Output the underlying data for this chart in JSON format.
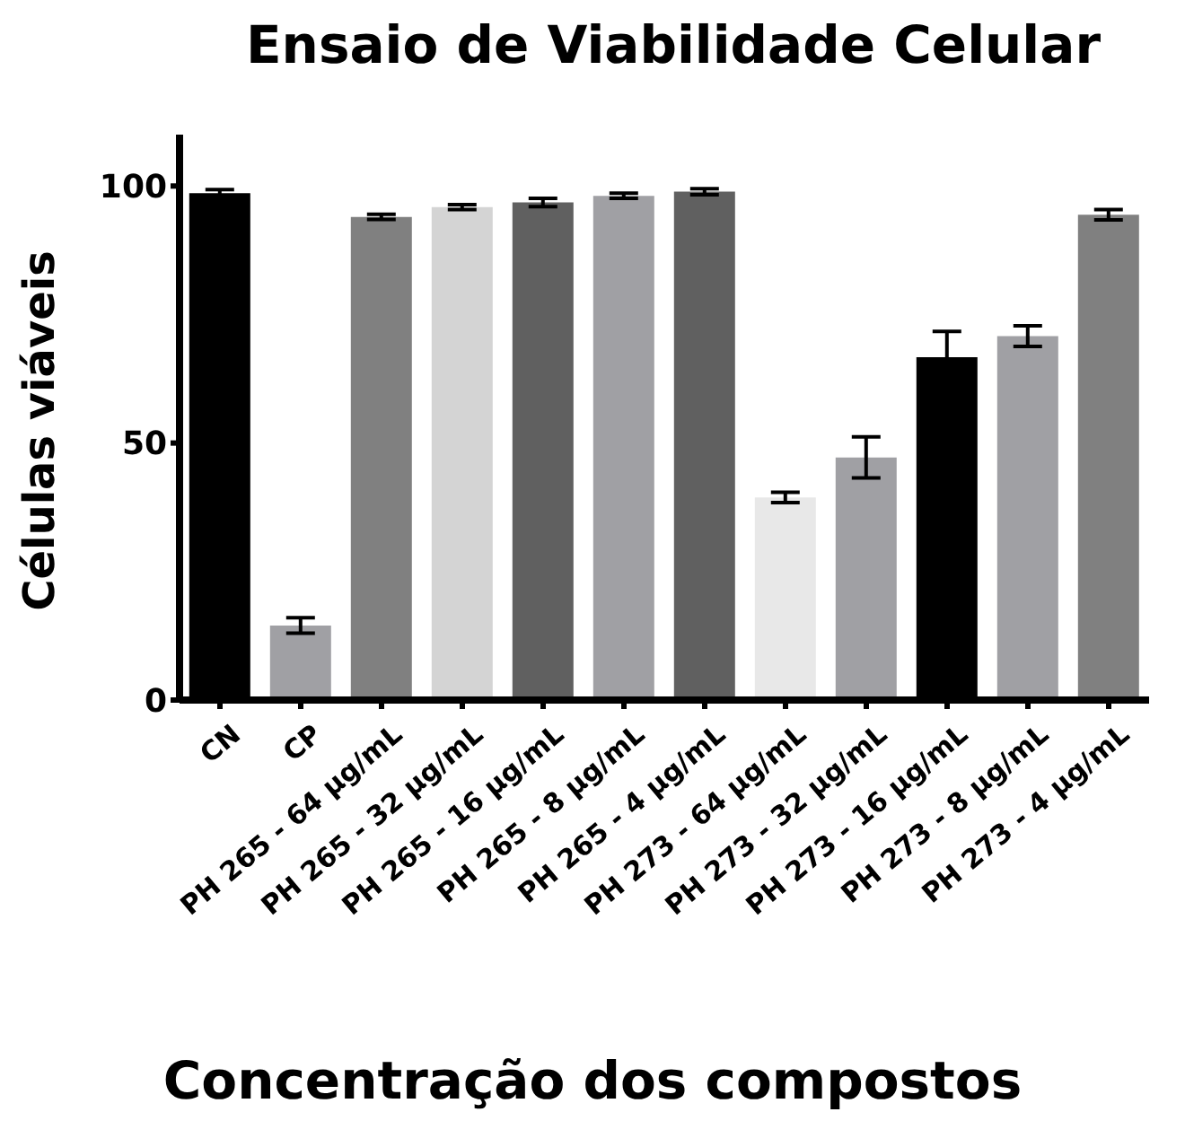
{
  "chart_data": {
    "type": "bar",
    "title": "Ensaio de Viabilidade Celular",
    "xlabel": "Concentração dos compostos",
    "ylabel": "Células viáveis",
    "categories": [
      "CN",
      "CP",
      "PH 265 - 64 µg/mL",
      "PH 265 - 32 µg/mL",
      "PH 265 - 16 µg/mL",
      "PH 265 - 8 µg/mL",
      "PH 265 - 4 µg/mL",
      "PH 273 - 64 µg/mL",
      "PH 273 - 32 µg/mL",
      "PH 273 - 16 µg/mL",
      "PH 273 - 8 µg/mL",
      "PH 273 - 4 µg/mL"
    ],
    "values": [
      98.6,
      14.5,
      94,
      95.9,
      96.8,
      98.1,
      98.9,
      39.4,
      47.2,
      66.7,
      70.8,
      94.4
    ],
    "errors": [
      0.7,
      1.5,
      0.5,
      0.5,
      0.8,
      0.5,
      0.6,
      1,
      4,
      5,
      2,
      1
    ],
    "colors": [
      "#000000",
      "#a0a0a4",
      "#808080",
      "#d4d4d4",
      "#606060",
      "#a0a0a4",
      "#606060",
      "#e8e8e8",
      "#a0a0a4",
      "#000000",
      "#a0a0a4",
      "#808080"
    ],
    "ylim": [
      0,
      110
    ],
    "yticks": [
      0,
      50,
      100
    ],
    "grid": false,
    "legend": false
  }
}
